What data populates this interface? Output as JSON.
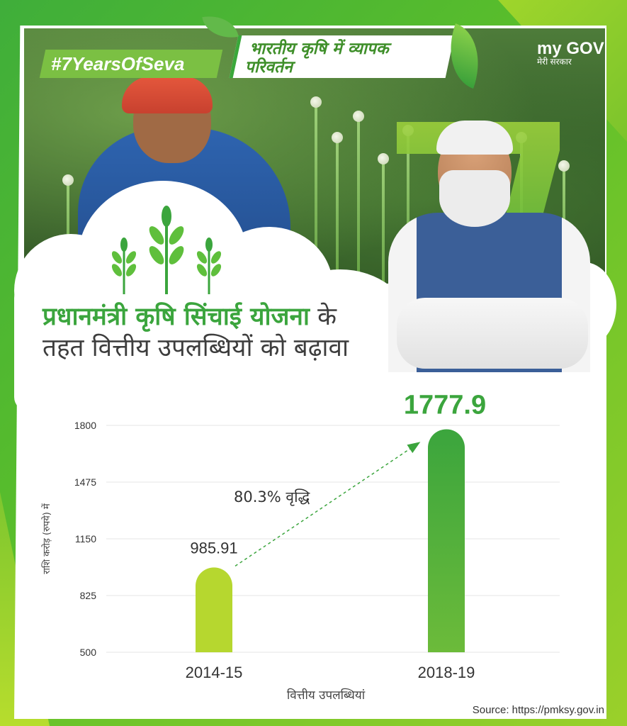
{
  "header": {
    "hashtag": "#7YearsOfSeva",
    "title_line1": "भारतीय कृषि में व्यापक",
    "title_line2": "परिवर्तन"
  },
  "logo": {
    "main": "my GOV",
    "sub": "मेरी सरकार"
  },
  "headline": {
    "highlight": "प्रधानमंत्री कृषि सिंचाई योजना",
    "rest": "के तहत वित्तीय उपलब्धियों को बढ़ावा"
  },
  "colors": {
    "green_dark": "#3ba53d",
    "green_light": "#b6d72f",
    "accent": "#7ac043"
  },
  "chart_data": {
    "type": "bar",
    "categories": [
      "2014-15",
      "2018-19"
    ],
    "values": [
      985.91,
      1777.9
    ],
    "value_labels": [
      "985.91",
      "1777.9"
    ],
    "ylim": [
      500,
      1800
    ],
    "yticks": [
      500,
      825,
      1150,
      1475,
      1800
    ],
    "xlabel": "वित्तीय उपलब्धियां",
    "ylabel": "राशि करोड़ (रुपये) में",
    "annotation": "80.3% वृद्धि",
    "grid": true
  },
  "source": "Source: https://pmksy.gov.in"
}
